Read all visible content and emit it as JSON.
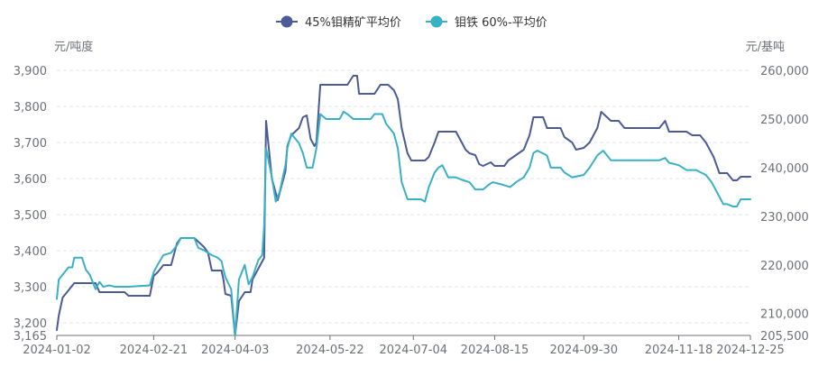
{
  "chart_data": {
    "type": "line",
    "legend_position": "top-center",
    "grid": true,
    "y_left": {
      "unit": "元/吨度",
      "ylim": [
        3165,
        3900
      ],
      "ticks": [
        "3,165",
        "3,200",
        "3,300",
        "3,400",
        "3,500",
        "3,600",
        "3,700",
        "3,800",
        "3,900"
      ],
      "tick_values": [
        3165,
        3200,
        3300,
        3400,
        3500,
        3600,
        3700,
        3800,
        3900
      ]
    },
    "y_right": {
      "unit": "元/基吨",
      "ylim": [
        205500,
        260000
      ],
      "ticks": [
        "205,500",
        "210,000",
        "220,000",
        "230,000",
        "240,000",
        "250,000",
        "260,000"
      ],
      "tick_values": [
        205500,
        210000,
        220000,
        230000,
        240000,
        250000,
        260000
      ]
    },
    "x_ticks": [
      "2024-01-02",
      "2024-02-21",
      "2024-04-03",
      "2024-05-22",
      "2024-07-04",
      "2024-08-15",
      "2024-09-30",
      "2024-11-18",
      "2024-12-25"
    ],
    "x_range": [
      "2024-01-02",
      "2024-12-25"
    ],
    "series": [
      {
        "name": "45%钼精矿平均价",
        "axis": "left",
        "color": "#4c5a96",
        "points": [
          [
            "2024-01-02",
            3180
          ],
          [
            "2024-01-03",
            3220
          ],
          [
            "2024-01-05",
            3270
          ],
          [
            "2024-01-08",
            3290
          ],
          [
            "2024-01-11",
            3310
          ],
          [
            "2024-01-22",
            3310
          ],
          [
            "2024-01-24",
            3285
          ],
          [
            "2024-02-06",
            3285
          ],
          [
            "2024-02-08",
            3275
          ],
          [
            "2024-02-19",
            3275
          ],
          [
            "2024-02-21",
            3330
          ],
          [
            "2024-02-23",
            3340
          ],
          [
            "2024-02-26",
            3360
          ],
          [
            "2024-03-01",
            3360
          ],
          [
            "2024-03-04",
            3420
          ],
          [
            "2024-03-06",
            3435
          ],
          [
            "2024-03-13",
            3435
          ],
          [
            "2024-03-18",
            3410
          ],
          [
            "2024-03-20",
            3395
          ],
          [
            "2024-03-22",
            3345
          ],
          [
            "2024-03-27",
            3345
          ],
          [
            "2024-03-28",
            3320
          ],
          [
            "2024-03-29",
            3280
          ],
          [
            "2024-04-01",
            3275
          ],
          [
            "2024-04-03",
            3165
          ],
          [
            "2024-04-05",
            3260
          ],
          [
            "2024-04-08",
            3285
          ],
          [
            "2024-04-11",
            3285
          ],
          [
            "2024-04-12",
            3320
          ],
          [
            "2024-04-16",
            3360
          ],
          [
            "2024-04-18",
            3380
          ],
          [
            "2024-04-19",
            3760
          ],
          [
            "2024-04-22",
            3600
          ],
          [
            "2024-04-24",
            3560
          ],
          [
            "2024-04-25",
            3540
          ],
          [
            "2024-04-29",
            3620
          ],
          [
            "2024-04-30",
            3690
          ],
          [
            "2024-05-02",
            3720
          ],
          [
            "2024-05-06",
            3740
          ],
          [
            "2024-05-08",
            3770
          ],
          [
            "2024-05-10",
            3775
          ],
          [
            "2024-05-12",
            3710
          ],
          [
            "2024-05-14",
            3690
          ],
          [
            "2024-05-15",
            3700
          ],
          [
            "2024-05-17",
            3860
          ],
          [
            "2024-05-31",
            3860
          ],
          [
            "2024-06-03",
            3885
          ],
          [
            "2024-06-05",
            3885
          ],
          [
            "2024-06-06",
            3835
          ],
          [
            "2024-06-14",
            3835
          ],
          [
            "2024-06-17",
            3860
          ],
          [
            "2024-06-21",
            3860
          ],
          [
            "2024-06-24",
            3845
          ],
          [
            "2024-06-26",
            3820
          ],
          [
            "2024-06-28",
            3740
          ],
          [
            "2024-07-01",
            3670
          ],
          [
            "2024-07-03",
            3650
          ],
          [
            "2024-07-10",
            3650
          ],
          [
            "2024-07-12",
            3660
          ],
          [
            "2024-07-15",
            3700
          ],
          [
            "2024-07-17",
            3730
          ],
          [
            "2024-07-26",
            3730
          ],
          [
            "2024-07-29",
            3700
          ],
          [
            "2024-07-31",
            3680
          ],
          [
            "2024-08-02",
            3670
          ],
          [
            "2024-08-05",
            3665
          ],
          [
            "2024-08-07",
            3640
          ],
          [
            "2024-08-09",
            3635
          ],
          [
            "2024-08-13",
            3645
          ],
          [
            "2024-08-15",
            3635
          ],
          [
            "2024-08-20",
            3635
          ],
          [
            "2024-08-22",
            3650
          ],
          [
            "2024-08-26",
            3665
          ],
          [
            "2024-08-30",
            3680
          ],
          [
            "2024-09-02",
            3720
          ],
          [
            "2024-09-04",
            3770
          ],
          [
            "2024-09-09",
            3770
          ],
          [
            "2024-09-11",
            3740
          ],
          [
            "2024-09-18",
            3740
          ],
          [
            "2024-09-20",
            3715
          ],
          [
            "2024-09-24",
            3700
          ],
          [
            "2024-09-26",
            3680
          ],
          [
            "2024-09-30",
            3685
          ],
          [
            "2024-10-03",
            3700
          ],
          [
            "2024-10-07",
            3740
          ],
          [
            "2024-10-09",
            3785
          ],
          [
            "2024-10-11",
            3775
          ],
          [
            "2024-10-14",
            3760
          ],
          [
            "2024-10-18",
            3760
          ],
          [
            "2024-10-21",
            3740
          ],
          [
            "2024-11-08",
            3740
          ],
          [
            "2024-11-11",
            3760
          ],
          [
            "2024-11-13",
            3730
          ],
          [
            "2024-11-22",
            3730
          ],
          [
            "2024-11-25",
            3720
          ],
          [
            "2024-11-29",
            3720
          ],
          [
            "2024-12-02",
            3700
          ],
          [
            "2024-12-04",
            3680
          ],
          [
            "2024-12-06",
            3660
          ],
          [
            "2024-12-09",
            3615
          ],
          [
            "2024-12-13",
            3615
          ],
          [
            "2024-12-16",
            3595
          ],
          [
            "2024-12-18",
            3595
          ],
          [
            "2024-12-20",
            3605
          ],
          [
            "2024-12-25",
            3605
          ]
        ]
      },
      {
        "name": "钼铁 60%-平均价",
        "axis": "right",
        "color": "#3ab0c4",
        "points": [
          [
            "2024-01-02",
            213000
          ],
          [
            "2024-01-03",
            217000
          ],
          [
            "2024-01-05",
            218000
          ],
          [
            "2024-01-08",
            219500
          ],
          [
            "2024-01-10",
            219500
          ],
          [
            "2024-01-11",
            221500
          ],
          [
            "2024-01-15",
            221500
          ],
          [
            "2024-01-17",
            219000
          ],
          [
            "2024-01-19",
            218000
          ],
          [
            "2024-01-22",
            215000
          ],
          [
            "2024-01-24",
            216500
          ],
          [
            "2024-01-26",
            215500
          ],
          [
            "2024-01-29",
            215800
          ],
          [
            "2024-02-01",
            215500
          ],
          [
            "2024-02-08",
            215500
          ],
          [
            "2024-02-19",
            215800
          ],
          [
            "2024-02-21",
            218500
          ],
          [
            "2024-02-23",
            220000
          ],
          [
            "2024-02-26",
            222000
          ],
          [
            "2024-03-01",
            222500
          ],
          [
            "2024-03-04",
            224000
          ],
          [
            "2024-03-06",
            225500
          ],
          [
            "2024-03-13",
            225500
          ],
          [
            "2024-03-15",
            223500
          ],
          [
            "2024-03-18",
            223000
          ],
          [
            "2024-03-22",
            222000
          ],
          [
            "2024-03-25",
            221500
          ],
          [
            "2024-03-27",
            220800
          ],
          [
            "2024-03-28",
            219000
          ],
          [
            "2024-03-29",
            217500
          ],
          [
            "2024-04-01",
            215000
          ],
          [
            "2024-04-03",
            205500
          ],
          [
            "2024-04-05",
            217000
          ],
          [
            "2024-04-08",
            220000
          ],
          [
            "2024-04-10",
            216000
          ],
          [
            "2024-04-12",
            217500
          ],
          [
            "2024-04-15",
            221000
          ],
          [
            "2024-04-17",
            222000
          ],
          [
            "2024-04-18",
            228000
          ],
          [
            "2024-04-19",
            244000
          ],
          [
            "2024-04-22",
            238000
          ],
          [
            "2024-04-24",
            233000
          ],
          [
            "2024-04-26",
            235000
          ],
          [
            "2024-04-29",
            240500
          ],
          [
            "2024-04-30",
            244000
          ],
          [
            "2024-05-02",
            247000
          ],
          [
            "2024-05-06",
            245000
          ],
          [
            "2024-05-08",
            243000
          ],
          [
            "2024-05-10",
            240000
          ],
          [
            "2024-05-13",
            240000
          ],
          [
            "2024-05-15",
            244000
          ],
          [
            "2024-05-17",
            251000
          ],
          [
            "2024-05-20",
            250000
          ],
          [
            "2024-05-27",
            250000
          ],
          [
            "2024-05-29",
            251500
          ],
          [
            "2024-05-31",
            251000
          ],
          [
            "2024-06-03",
            250000
          ],
          [
            "2024-06-12",
            250000
          ],
          [
            "2024-06-14",
            251000
          ],
          [
            "2024-06-18",
            251000
          ],
          [
            "2024-06-20",
            249000
          ],
          [
            "2024-06-24",
            247000
          ],
          [
            "2024-06-26",
            244000
          ],
          [
            "2024-06-28",
            237000
          ],
          [
            "2024-07-01",
            233500
          ],
          [
            "2024-07-08",
            233500
          ],
          [
            "2024-07-10",
            233000
          ],
          [
            "2024-07-12",
            236000
          ],
          [
            "2024-07-15",
            239000
          ],
          [
            "2024-07-17",
            240000
          ],
          [
            "2024-07-19",
            240500
          ],
          [
            "2024-07-22",
            238000
          ],
          [
            "2024-07-26",
            238000
          ],
          [
            "2024-07-29",
            237500
          ],
          [
            "2024-08-02",
            237000
          ],
          [
            "2024-08-05",
            235500
          ],
          [
            "2024-08-09",
            235500
          ],
          [
            "2024-08-12",
            236500
          ],
          [
            "2024-08-14",
            237000
          ],
          [
            "2024-08-19",
            236500
          ],
          [
            "2024-08-23",
            236000
          ],
          [
            "2024-08-26",
            237000
          ],
          [
            "2024-08-30",
            238000
          ],
          [
            "2024-09-02",
            240000
          ],
          [
            "2024-09-04",
            243000
          ],
          [
            "2024-09-06",
            243500
          ],
          [
            "2024-09-11",
            242500
          ],
          [
            "2024-09-13",
            240000
          ],
          [
            "2024-09-18",
            240000
          ],
          [
            "2024-09-20",
            239000
          ],
          [
            "2024-09-24",
            238000
          ],
          [
            "2024-09-30",
            238500
          ],
          [
            "2024-10-03",
            240000
          ],
          [
            "2024-10-07",
            242500
          ],
          [
            "2024-10-10",
            243500
          ],
          [
            "2024-10-14",
            241500
          ],
          [
            "2024-10-21",
            241500
          ],
          [
            "2024-11-08",
            241500
          ],
          [
            "2024-11-11",
            242000
          ],
          [
            "2024-11-13",
            241000
          ],
          [
            "2024-11-18",
            240500
          ],
          [
            "2024-11-22",
            239500
          ],
          [
            "2024-11-27",
            239500
          ],
          [
            "2024-12-02",
            238500
          ],
          [
            "2024-12-05",
            237000
          ],
          [
            "2024-12-09",
            234000
          ],
          [
            "2024-12-11",
            232500
          ],
          [
            "2024-12-13",
            232500
          ],
          [
            "2024-12-16",
            232000
          ],
          [
            "2024-12-18",
            232000
          ],
          [
            "2024-12-20",
            233500
          ],
          [
            "2024-12-25",
            233500
          ]
        ]
      }
    ]
  }
}
